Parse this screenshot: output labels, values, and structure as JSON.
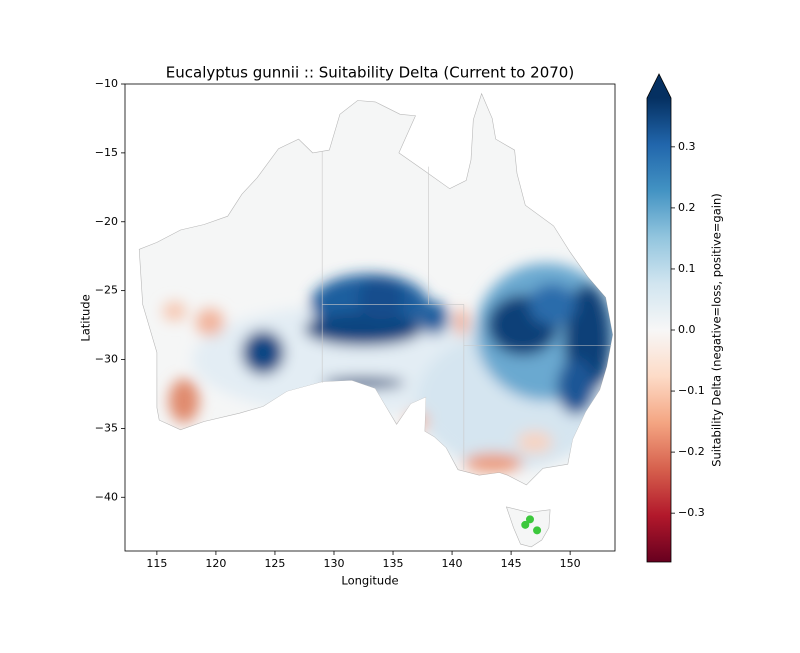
{
  "chart_data": {
    "type": "map",
    "title": "Eucalyptus gunnii :: Suitability Delta (Current to 2070)",
    "x_label": "Longitude",
    "y_label": "Latitude",
    "xlim": [
      112.3,
      153.8
    ],
    "ylim": [
      -43.9,
      -10
    ],
    "xticks": [
      115,
      120,
      125,
      130,
      135,
      140,
      145,
      150
    ],
    "yticks": [
      {
        "value": -10,
        "label": "−10"
      },
      {
        "value": -15,
        "label": "−15"
      },
      {
        "value": -20,
        "label": "−20"
      },
      {
        "value": -25,
        "label": "−25"
      },
      {
        "value": -30,
        "label": "−30"
      },
      {
        "value": -35,
        "label": "−35"
      },
      {
        "value": -40,
        "label": "−40"
      }
    ],
    "colorbar": {
      "label": "Suitability Delta (negative=loss, positive=gain)",
      "lim": [
        -0.38,
        0.38
      ],
      "extend": "max",
      "ticks": [
        0.3,
        0.2,
        0.1,
        {
          "value": 0,
          "label": "0.0"
        },
        {
          "value": -0.1,
          "label": "−0.1"
        },
        {
          "value": -0.2,
          "label": "−0.2"
        },
        {
          "value": -0.3,
          "label": "−0.3"
        }
      ],
      "colors": [
        "#67001f",
        "#b2182b",
        "#d6604d",
        "#f4a582",
        "#fddbc7",
        "#f7f7f7",
        "#d1e5f0",
        "#92c5de",
        "#4393c3",
        "#2166ac",
        "#053061"
      ]
    }
  }
}
